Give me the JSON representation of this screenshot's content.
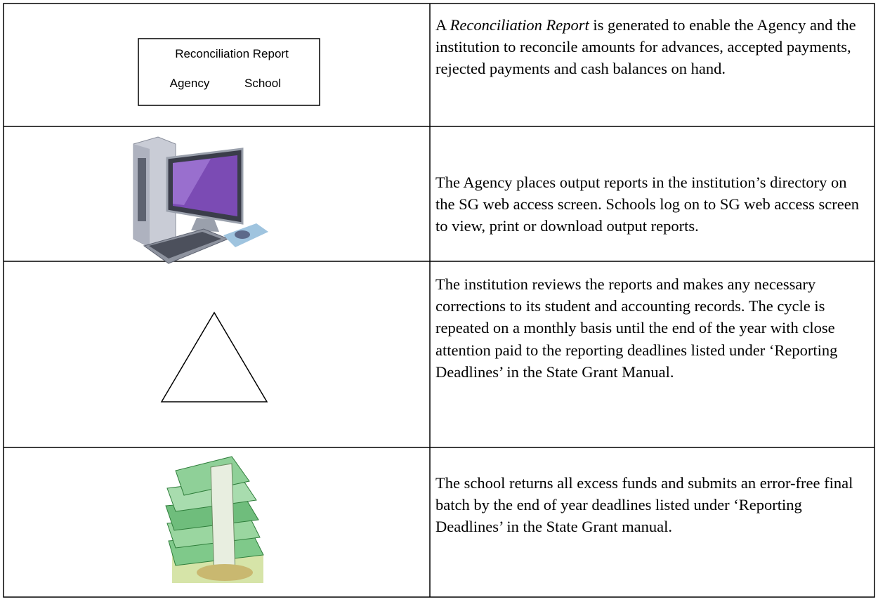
{
  "rows": [
    {
      "diagram": {
        "title": "Reconciliation Report",
        "left": "Agency",
        "right": "School"
      },
      "text_parts": [
        "A ",
        "Reconciliation Report",
        " is generated to enable the Agency and the institution to reconcile amounts for advances, accepted payments, rejected payments and cash balances on hand."
      ]
    },
    {
      "text": "The Agency places output reports in the institution’s directory on the SG web access screen. Schools log on to SG web access screen to view, print or download output reports."
    },
    {
      "text": "The institution reviews the reports and makes any necessary corrections to its student and accounting records. The cycle is repeated on a monthly basis until the end of the year with close attention paid to the reporting deadlines listed under ‘Reporting Deadlines’ in the State Grant Manual."
    },
    {
      "text": "The school returns all excess funds and submits an error-free final batch by the end of year deadlines listed under ‘Reporting Deadlines’ in the State Grant manual."
    }
  ]
}
